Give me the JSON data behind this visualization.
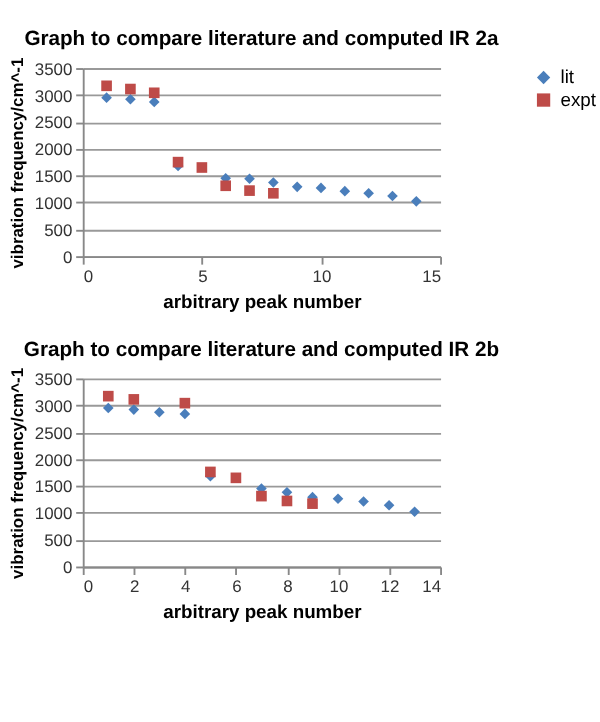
{
  "chart_data": [
    {
      "type": "scatter",
      "title": "Graph to compare literature and computed IR 2a",
      "xlabel": "arbitrary peak number",
      "ylabel": "vibration frequency/cm^-1",
      "xlim": [
        0,
        15
      ],
      "xticks": [
        0,
        5,
        10,
        15
      ],
      "ylim": [
        0,
        3500
      ],
      "yticks": [
        0,
        500,
        1000,
        1500,
        2000,
        2500,
        3000,
        3500
      ],
      "grid": "y",
      "legend": "right",
      "series": [
        {
          "name": "lit",
          "color": "#4a7ebb",
          "marker": "diamond",
          "x": [
            1,
            2,
            3,
            4,
            5,
            6,
            7,
            8,
            9,
            10,
            11,
            12,
            13,
            14
          ],
          "values": [
            2950,
            2920,
            2870,
            1680,
            null,
            1450,
            1440,
            1370,
            1290,
            1270,
            1210,
            1170,
            1120,
            1020
          ]
        },
        {
          "name": "expt",
          "color": "#be4b48",
          "marker": "square",
          "x": [
            1,
            2,
            3,
            4,
            5,
            6,
            7,
            8
          ],
          "values": [
            3170,
            3110,
            3040,
            1750,
            1650,
            1310,
            1220,
            1170
          ]
        }
      ]
    },
    {
      "type": "scatter",
      "title": "Graph to compare literature and computed IR 2b",
      "xlabel": "arbitrary peak number",
      "ylabel": "vibration frequency/cm^-1",
      "xlim": [
        0,
        14
      ],
      "xticks": [
        0,
        2,
        4,
        6,
        8,
        10,
        12,
        14
      ],
      "ylim": [
        0,
        3500
      ],
      "yticks": [
        0,
        500,
        1000,
        1500,
        2000,
        2500,
        3000,
        3500
      ],
      "grid": "y",
      "legend": "right",
      "series": [
        {
          "name": "lit",
          "color": "#4a7ebb",
          "marker": "diamond",
          "x": [
            1,
            2,
            3,
            4,
            5,
            6,
            7,
            8,
            9,
            10,
            11,
            12,
            13
          ],
          "values": [
            2950,
            2920,
            2870,
            2840,
            1680,
            null,
            1450,
            1380,
            1290,
            1260,
            1210,
            1140,
            1020
          ]
        },
        {
          "name": "expt",
          "color": "#be4b48",
          "marker": "square",
          "x": [
            1,
            2,
            4,
            5,
            6,
            7,
            8,
            9
          ],
          "values": [
            3170,
            3110,
            3040,
            1760,
            1650,
            1310,
            1220,
            1170
          ]
        }
      ]
    }
  ]
}
